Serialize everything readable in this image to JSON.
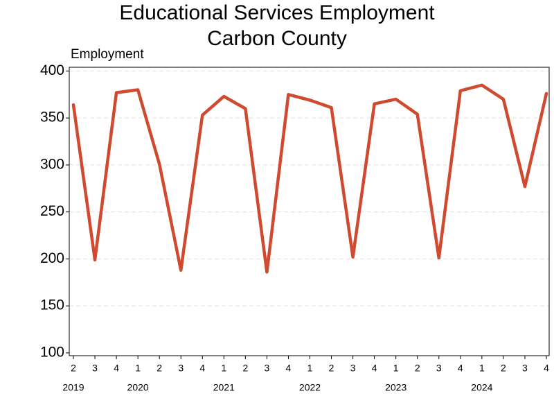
{
  "chart_data": {
    "type": "line",
    "title": "Educational Services Employment",
    "subtitle": "Carbon County",
    "y_label": "Employment",
    "categories": [
      "2",
      "3",
      "4",
      "1",
      "2",
      "3",
      "4",
      "1",
      "2",
      "3",
      "4",
      "1",
      "2",
      "3",
      "4",
      "1",
      "2",
      "3",
      "4",
      "1",
      "2",
      "3",
      "4"
    ],
    "year_labels": [
      "2019",
      null,
      null,
      "2020",
      null,
      null,
      null,
      "2021",
      null,
      null,
      null,
      "2022",
      null,
      null,
      null,
      "2023",
      null,
      null,
      null,
      "2024",
      null,
      null,
      null
    ],
    "series": [
      {
        "name": "Employment",
        "color": "#d04a2f",
        "values": [
          364,
          199,
          377,
          380,
          301,
          188,
          353,
          373,
          360,
          186,
          375,
          369,
          361,
          202,
          365,
          370,
          354,
          201,
          379,
          385,
          370,
          277,
          376
        ]
      }
    ],
    "ylim": [
      97,
      404
    ],
    "yticks": [
      100,
      150,
      200,
      250,
      300,
      350,
      400
    ],
    "grid": true
  }
}
